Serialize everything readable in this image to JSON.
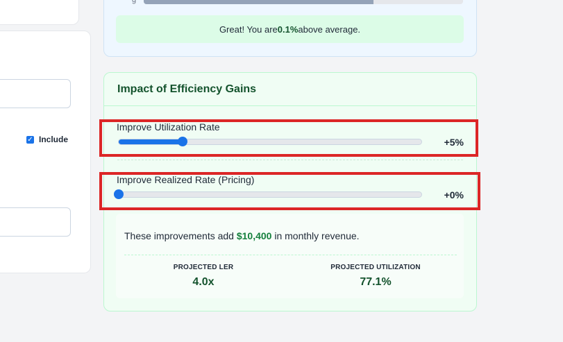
{
  "left_panel": {
    "include_label": "Include"
  },
  "benchmark": {
    "tag_text": "g",
    "bar_fill_fraction": 0.72,
    "note_prefix": "Great! You are ",
    "note_value": "0.1%",
    "note_suffix": " above average."
  },
  "impact": {
    "title": "Impact of Efficiency Gains",
    "utilization_slider": {
      "label": "Improve Utilization Rate",
      "value_text": "+5%",
      "fraction": 0.21
    },
    "pricing_slider": {
      "label": "Improve Realized Rate (Pricing)",
      "value_text": "+0%",
      "fraction": 0.0
    },
    "result": {
      "prefix": "These improvements add ",
      "amount": "$10,400",
      "suffix": " in monthly revenue."
    },
    "stats": [
      {
        "label": "PROJECTED LER",
        "value": "4.0x"
      },
      {
        "label": "PROJECTED UTILIZATION",
        "value": "77.1%"
      }
    ]
  },
  "colors": {
    "accent": "#1a73e8",
    "highlight": "#dc2626",
    "success_text": "#14532d"
  }
}
